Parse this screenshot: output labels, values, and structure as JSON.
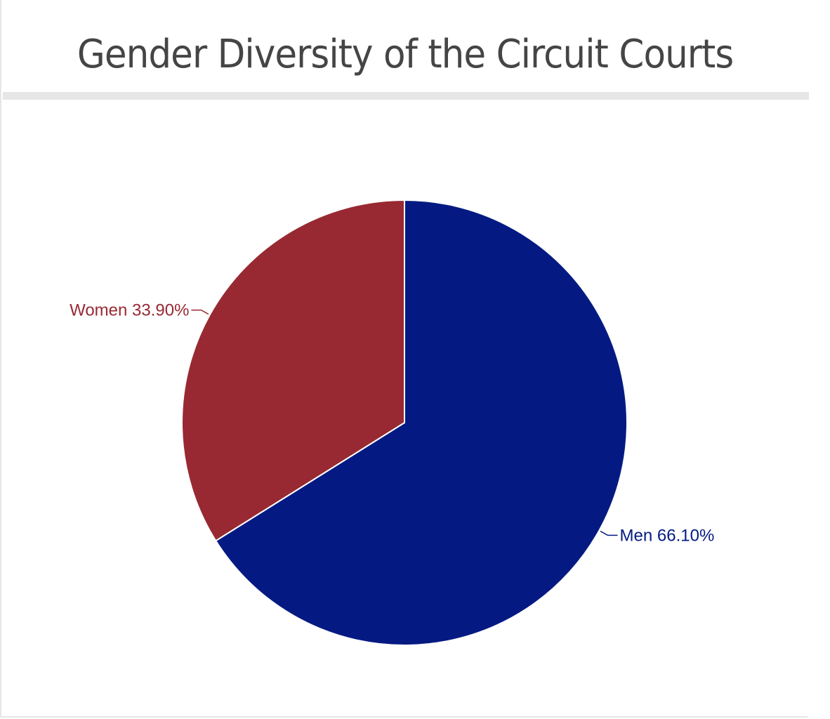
{
  "title": "Gender Diversity of the Circuit Courts",
  "chart_data": {
    "type": "pie",
    "title": "Gender Diversity of the Circuit Courts",
    "slices": [
      {
        "label": "Men",
        "value": 66.1,
        "display": "Men 66.10%",
        "color": "#041a82"
      },
      {
        "label": "Women",
        "value": 33.9,
        "display": "Women 33.90%",
        "color": "#982932"
      }
    ],
    "start_angle": "12 o'clock",
    "direction": "clockwise",
    "slice_border_color": "#ffffff",
    "legend": "none",
    "label_style": "outside with leader lines"
  }
}
